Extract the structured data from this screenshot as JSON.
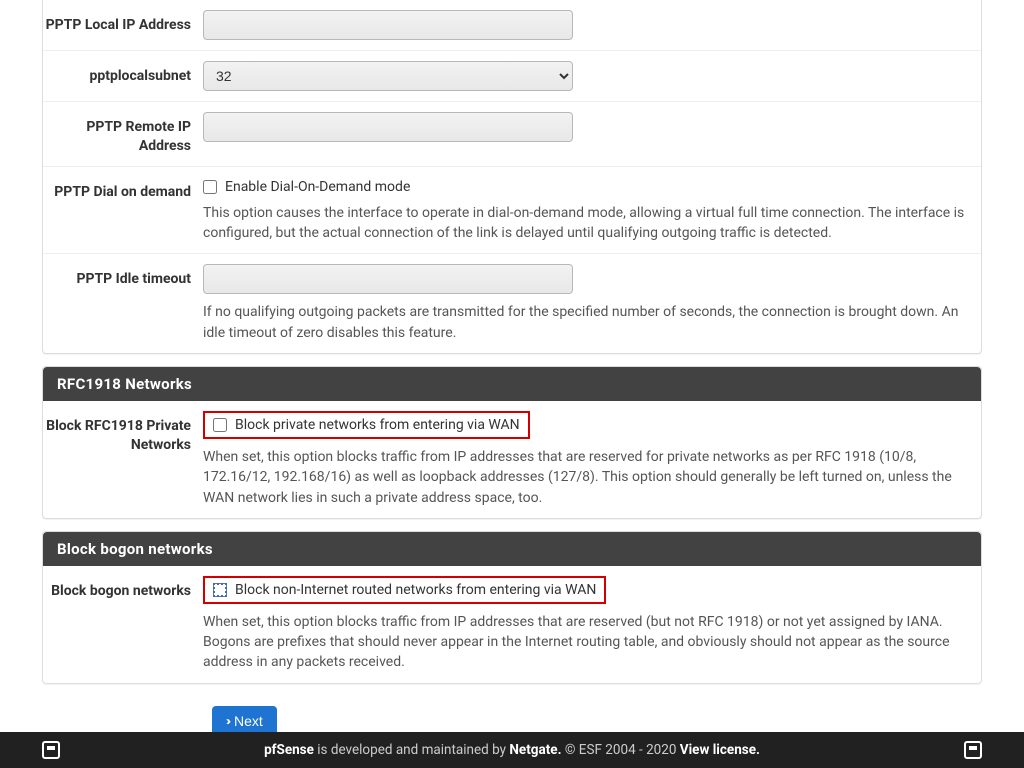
{
  "pptp_section": {
    "local_ip_label": "PPTP Local IP Address",
    "local_ip_value": "",
    "local_subnet_label": "pptplocalsubnet",
    "local_subnet_value": "32",
    "remote_ip_label": "PPTP Remote IP Address",
    "remote_ip_value": "",
    "dial_on_demand_label": "PPTP Dial on demand",
    "dial_on_demand_checkbox_label": "Enable Dial-On-Demand mode",
    "dial_on_demand_help": "This option causes the interface to operate in dial-on-demand mode, allowing a virtual full time connection. The interface is configured, but the actual connection of the link is delayed until qualifying outgoing traffic is detected.",
    "idle_timeout_label": "PPTP Idle timeout",
    "idle_timeout_value": "",
    "idle_timeout_help": "If no qualifying outgoing packets are transmitted for the specified number of seconds, the connection is brought down. An idle timeout of zero disables this feature."
  },
  "rfc1918_section": {
    "heading": "RFC1918 Networks",
    "label": "Block RFC1918 Private Networks",
    "checkbox_label": "Block private networks from entering via WAN",
    "help": "When set, this option blocks traffic from IP addresses that are reserved for private networks as per RFC 1918 (10/8, 172.16/12, 192.168/16) as well as loopback addresses (127/8). This option should generally be left turned on, unless the WAN network lies in such a private address space, too."
  },
  "bogon_section": {
    "heading": "Block bogon networks",
    "label": "Block bogon networks",
    "checkbox_label": "Block non-Internet routed networks from entering via WAN",
    "help": "When set, this option blocks traffic from IP addresses that are reserved (but not RFC 1918) or not yet assigned by IANA. Bogons are prefixes that should never appear in the Internet routing table, and obviously should not appear as the source address in any packets received."
  },
  "button_next": "Next",
  "footer": {
    "brand": "pfSense",
    "text_mid": " is developed and maintained by ",
    "company": "Netgate.",
    "copyright": " © ESF 2004 - 2020 ",
    "license": "View license."
  },
  "colors": {
    "panel_header_bg": "#424242",
    "primary_btn": "#1f74d1",
    "highlight_border": "#d40000",
    "footer_bg": "#212121"
  }
}
